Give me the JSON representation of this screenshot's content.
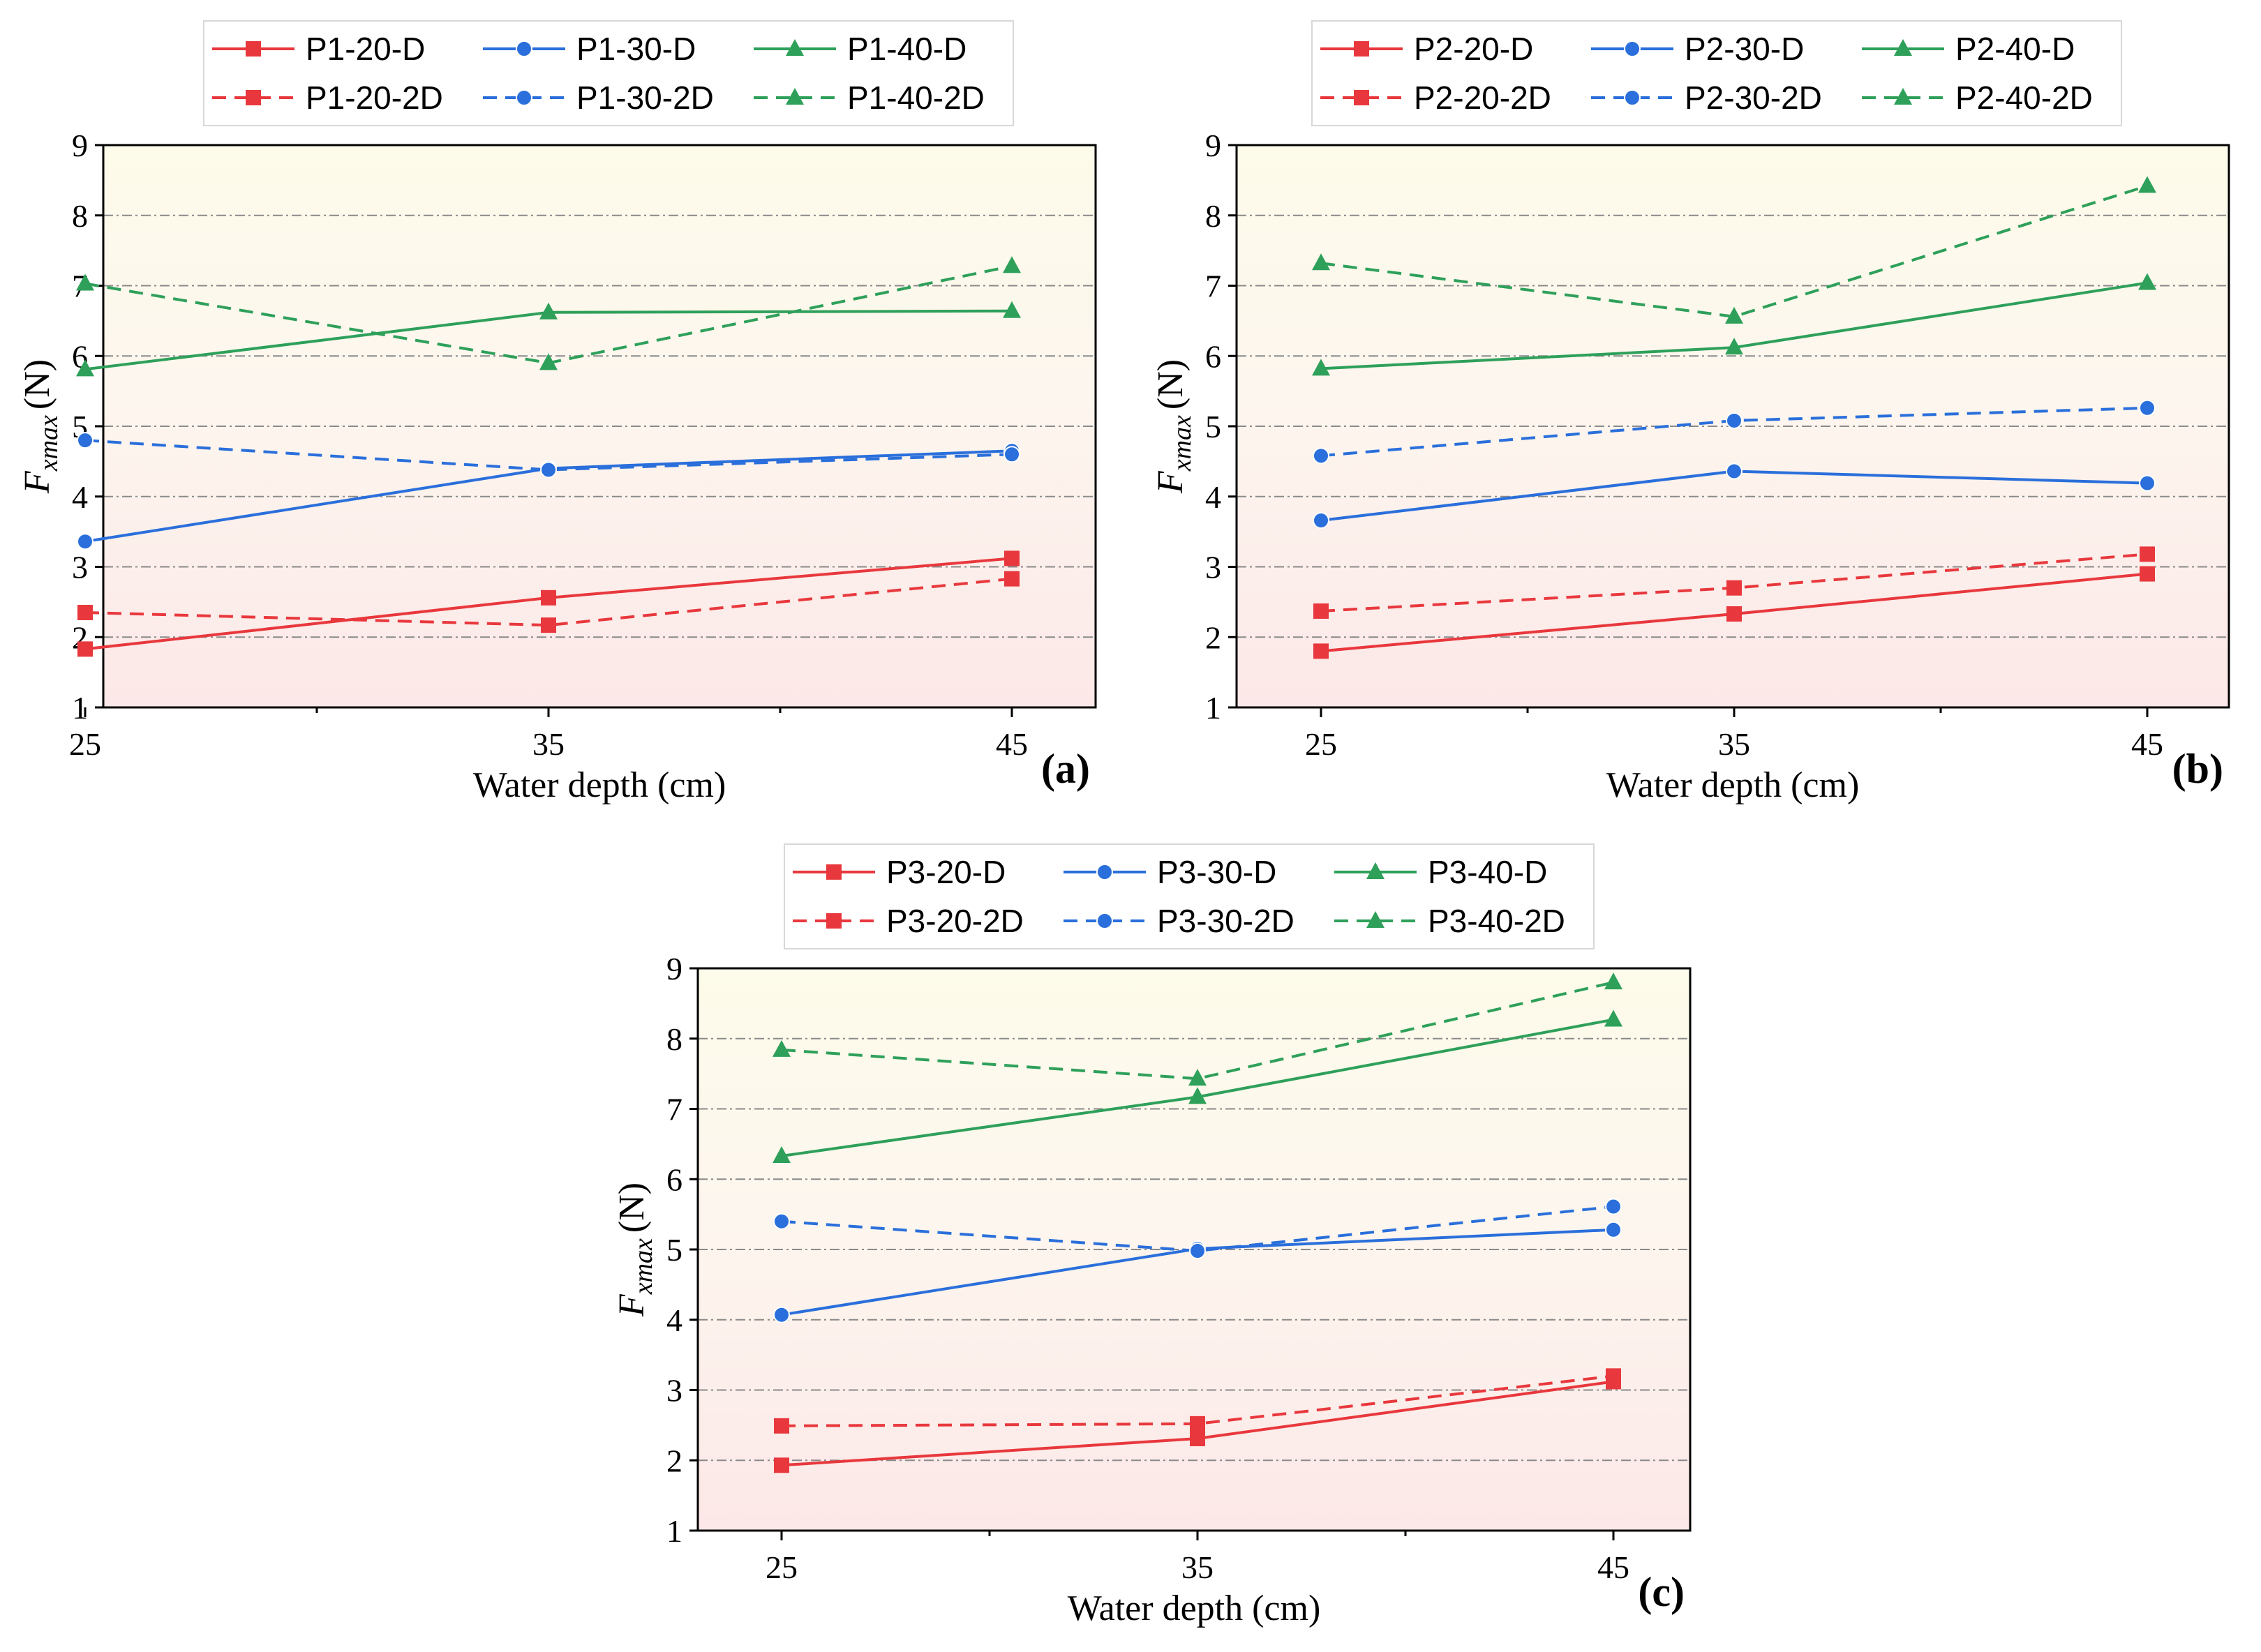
{
  "chart_data": [
    {
      "type": "line",
      "panel_label": "(a)",
      "xlabel": "Water depth (cm)",
      "ylabel_main": "F",
      "ylabel_sub": "xmax",
      "ylabel_unit": "(N)",
      "x": [
        25,
        35,
        45
      ],
      "x_tick_labels": [
        "25",
        "35",
        "45"
      ],
      "ylim": [
        1,
        9
      ],
      "y_tick_labels": [
        "1",
        "2",
        "3",
        "4",
        "5",
        "6",
        "7",
        "8",
        "9"
      ],
      "grid": true,
      "legend_position": "top",
      "series": [
        {
          "name": "P1-20-D",
          "values": [
            1.83,
            2.56,
            3.12
          ],
          "color": "#e8383d",
          "dash": false,
          "marker": "square"
        },
        {
          "name": "P1-30-D",
          "values": [
            3.36,
            4.4,
            4.65
          ],
          "color": "#2a6fdb",
          "dash": false,
          "marker": "circle"
        },
        {
          "name": "P1-40-D",
          "values": [
            5.81,
            6.62,
            6.64
          ],
          "color": "#2ea05a",
          "dash": false,
          "marker": "triangle"
        },
        {
          "name": "P1-20-2D",
          "values": [
            2.35,
            2.17,
            2.83
          ],
          "color": "#e8383d",
          "dash": true,
          "marker": "square"
        },
        {
          "name": "P1-30-2D",
          "values": [
            4.8,
            4.38,
            4.6
          ],
          "color": "#2a6fdb",
          "dash": true,
          "marker": "circle"
        },
        {
          "name": "P1-40-2D",
          "values": [
            7.03,
            5.9,
            7.28
          ],
          "color": "#2ea05a",
          "dash": true,
          "marker": "triangle"
        }
      ]
    },
    {
      "type": "line",
      "panel_label": "(b)",
      "xlabel": "Water depth (cm)",
      "ylabel_main": "F",
      "ylabel_sub": "xmax",
      "ylabel_unit": "(N)",
      "x": [
        25,
        35,
        45
      ],
      "x_tick_labels": [
        "25",
        "35",
        "45"
      ],
      "ylim": [
        1,
        9
      ],
      "y_tick_labels": [
        "1",
        "2",
        "3",
        "4",
        "5",
        "6",
        "7",
        "8",
        "9"
      ],
      "grid": true,
      "legend_position": "top",
      "series": [
        {
          "name": "P2-20-D",
          "values": [
            1.8,
            2.33,
            2.9
          ],
          "color": "#e8383d",
          "dash": false,
          "marker": "square"
        },
        {
          "name": "P2-30-D",
          "values": [
            3.66,
            4.36,
            4.19
          ],
          "color": "#2a6fdb",
          "dash": false,
          "marker": "circle"
        },
        {
          "name": "P2-40-D",
          "values": [
            5.82,
            6.12,
            7.04
          ],
          "color": "#2ea05a",
          "dash": false,
          "marker": "triangle"
        },
        {
          "name": "P2-20-2D",
          "values": [
            2.37,
            2.7,
            3.18
          ],
          "color": "#e8383d",
          "dash": true,
          "marker": "square"
        },
        {
          "name": "P2-30-2D",
          "values": [
            4.58,
            5.08,
            5.26
          ],
          "color": "#2a6fdb",
          "dash": true,
          "marker": "circle"
        },
        {
          "name": "P2-40-2D",
          "values": [
            7.32,
            6.56,
            8.42
          ],
          "color": "#2ea05a",
          "dash": true,
          "marker": "triangle"
        }
      ]
    },
    {
      "type": "line",
      "panel_label": "(c)",
      "xlabel": "Water depth (cm)",
      "ylabel_main": "F",
      "ylabel_sub": "xmax",
      "ylabel_unit": "(N)",
      "x": [
        25,
        35,
        45
      ],
      "x_tick_labels": [
        "25",
        "35",
        "45"
      ],
      "ylim": [
        1,
        9
      ],
      "y_tick_labels": [
        "1",
        "2",
        "3",
        "4",
        "5",
        "6",
        "7",
        "8",
        "9"
      ],
      "grid": true,
      "legend_position": "top",
      "series": [
        {
          "name": "P3-20-D",
          "values": [
            1.93,
            2.31,
            3.12
          ],
          "color": "#e8383d",
          "dash": false,
          "marker": "square"
        },
        {
          "name": "P3-30-D",
          "values": [
            4.07,
            5.01,
            5.28
          ],
          "color": "#2a6fdb",
          "dash": false,
          "marker": "circle"
        },
        {
          "name": "P3-40-D",
          "values": [
            6.33,
            7.17,
            8.27
          ],
          "color": "#2ea05a",
          "dash": false,
          "marker": "triangle"
        },
        {
          "name": "P3-20-2D",
          "values": [
            2.49,
            2.52,
            3.2
          ],
          "color": "#e8383d",
          "dash": true,
          "marker": "square"
        },
        {
          "name": "P3-30-2D",
          "values": [
            5.4,
            4.98,
            5.61
          ],
          "color": "#2a6fdb",
          "dash": true,
          "marker": "circle"
        },
        {
          "name": "P3-40-2D",
          "values": [
            7.84,
            7.43,
            8.8
          ],
          "color": "#2ea05a",
          "dash": true,
          "marker": "triangle"
        }
      ]
    }
  ]
}
